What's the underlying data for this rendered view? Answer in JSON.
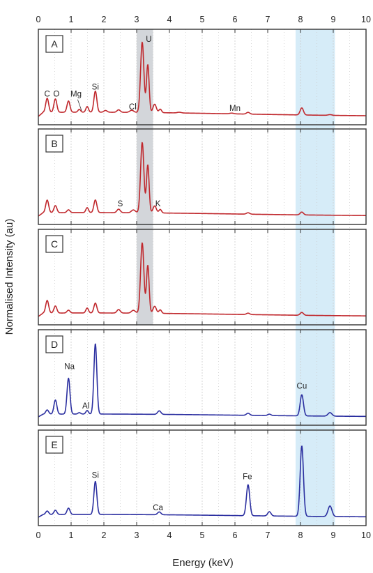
{
  "chart_data": {
    "type": "line",
    "title": "",
    "xlabel": "Energy (keV)",
    "ylabel": "Normalised Intensity (au)",
    "xlim": [
      0,
      10
    ],
    "xticks": [
      "0",
      "1",
      "2",
      "3",
      "4",
      "5",
      "6",
      "7",
      "8",
      "9",
      "10"
    ],
    "grid": "vertical minor gridlines every 0.5 keV",
    "highlight_bands": [
      {
        "name": "U band",
        "x0": 3.0,
        "x1": 3.5,
        "color": "#d3d6da",
        "panels": [
          "A",
          "B",
          "C"
        ]
      },
      {
        "name": "Cu band",
        "x0": 7.85,
        "x1": 9.05,
        "color": "#d6ecf8",
        "panels": [
          "A",
          "B",
          "C",
          "D",
          "E"
        ]
      }
    ],
    "colors": {
      "panels_ABC": "#c0282d",
      "panels_DE": "#2b2fa0",
      "axis": "#333333",
      "grid": "#cccccc"
    },
    "panels": [
      {
        "id": "A",
        "color": "#c0282d",
        "baseline": 0.06,
        "peaks": [
          [
            0.27,
            0.2,
            0.045
          ],
          [
            0.52,
            0.19,
            0.045
          ],
          [
            0.92,
            0.16,
            0.045
          ],
          [
            1.25,
            0.04,
            0.04
          ],
          [
            1.49,
            0.08,
            0.04
          ],
          [
            1.74,
            0.3,
            0.045
          ],
          [
            2.05,
            0.025,
            0.05
          ],
          [
            2.45,
            0.035,
            0.05
          ],
          [
            2.85,
            0.03,
            0.06
          ],
          [
            3.17,
            1.0,
            0.05
          ],
          [
            3.34,
            0.68,
            0.04
          ],
          [
            3.55,
            0.12,
            0.05
          ],
          [
            3.72,
            0.05,
            0.04
          ],
          [
            4.3,
            0.01,
            0.06
          ],
          [
            5.9,
            0.01,
            0.06
          ],
          [
            6.4,
            0.025,
            0.05
          ],
          [
            8.04,
            0.1,
            0.05
          ],
          [
            8.9,
            0.01,
            0.06
          ]
        ],
        "labels": [
          {
            "text": "C",
            "x": 0.27,
            "y": 0.26
          },
          {
            "text": "O",
            "x": 0.55,
            "y": 0.26
          },
          {
            "text": "Mg",
            "x": 1.15,
            "y": 0.26
          },
          {
            "text": "Si",
            "x": 1.74,
            "y": 0.36
          },
          {
            "text": "Cl",
            "x": 2.88,
            "y": 0.08
          },
          {
            "text": "U",
            "x": 3.37,
            "y": 1.04
          },
          {
            "text": "Mn",
            "x": 6.0,
            "y": 0.06
          }
        ]
      },
      {
        "id": "B",
        "color": "#c0282d",
        "baseline": 0.05,
        "peaks": [
          [
            0.27,
            0.18,
            0.045
          ],
          [
            0.52,
            0.1,
            0.045
          ],
          [
            0.92,
            0.04,
            0.045
          ],
          [
            1.49,
            0.07,
            0.04
          ],
          [
            1.74,
            0.18,
            0.045
          ],
          [
            2.45,
            0.05,
            0.05
          ],
          [
            2.9,
            0.04,
            0.06
          ],
          [
            3.17,
            1.0,
            0.05
          ],
          [
            3.34,
            0.68,
            0.04
          ],
          [
            3.55,
            0.1,
            0.05
          ],
          [
            3.72,
            0.05,
            0.04
          ],
          [
            6.4,
            0.02,
            0.05
          ],
          [
            8.04,
            0.04,
            0.05
          ]
        ],
        "labels": [
          {
            "text": "S",
            "x": 2.5,
            "y": 0.12
          },
          {
            "text": "K",
            "x": 3.65,
            "y": 0.12
          }
        ]
      },
      {
        "id": "C",
        "color": "#c0282d",
        "baseline": 0.05,
        "peaks": [
          [
            0.27,
            0.18,
            0.045
          ],
          [
            0.52,
            0.1,
            0.045
          ],
          [
            0.92,
            0.04,
            0.045
          ],
          [
            1.49,
            0.07,
            0.04
          ],
          [
            1.74,
            0.14,
            0.045
          ],
          [
            2.45,
            0.05,
            0.05
          ],
          [
            2.9,
            0.04,
            0.06
          ],
          [
            3.17,
            1.0,
            0.05
          ],
          [
            3.34,
            0.68,
            0.04
          ],
          [
            3.55,
            0.1,
            0.05
          ],
          [
            3.72,
            0.05,
            0.04
          ],
          [
            6.4,
            0.02,
            0.05
          ],
          [
            8.04,
            0.04,
            0.05
          ]
        ],
        "labels": []
      },
      {
        "id": "D",
        "color": "#2b2fa0",
        "baseline": 0.04,
        "peaks": [
          [
            0.27,
            0.06,
            0.045
          ],
          [
            0.52,
            0.2,
            0.045
          ],
          [
            0.92,
            0.51,
            0.045
          ],
          [
            1.25,
            0.02,
            0.04
          ],
          [
            1.49,
            0.05,
            0.04
          ],
          [
            1.74,
            1.0,
            0.045
          ],
          [
            3.69,
            0.05,
            0.05
          ],
          [
            6.4,
            0.03,
            0.05
          ],
          [
            7.05,
            0.02,
            0.05
          ],
          [
            8.04,
            0.3,
            0.05
          ],
          [
            8.9,
            0.05,
            0.06
          ]
        ],
        "labels": [
          {
            "text": "Na",
            "x": 0.95,
            "y": 0.66
          },
          {
            "text": "Al",
            "x": 1.45,
            "y": 0.1
          },
          {
            "text": "Cu",
            "x": 8.04,
            "y": 0.38
          }
        ]
      },
      {
        "id": "E",
        "color": "#2b2fa0",
        "baseline": 0.04,
        "peaks": [
          [
            0.27,
            0.05,
            0.045
          ],
          [
            0.52,
            0.06,
            0.045
          ],
          [
            0.92,
            0.09,
            0.045
          ],
          [
            1.74,
            0.47,
            0.045
          ],
          [
            3.69,
            0.04,
            0.05
          ],
          [
            6.4,
            0.44,
            0.05
          ],
          [
            7.05,
            0.06,
            0.05
          ],
          [
            8.04,
            1.0,
            0.05
          ],
          [
            8.9,
            0.15,
            0.06
          ]
        ],
        "labels": [
          {
            "text": "Si",
            "x": 1.74,
            "y": 0.54
          },
          {
            "text": "Ca",
            "x": 3.65,
            "y": 0.08
          },
          {
            "text": "Fe",
            "x": 6.38,
            "y": 0.52
          }
        ]
      }
    ]
  }
}
